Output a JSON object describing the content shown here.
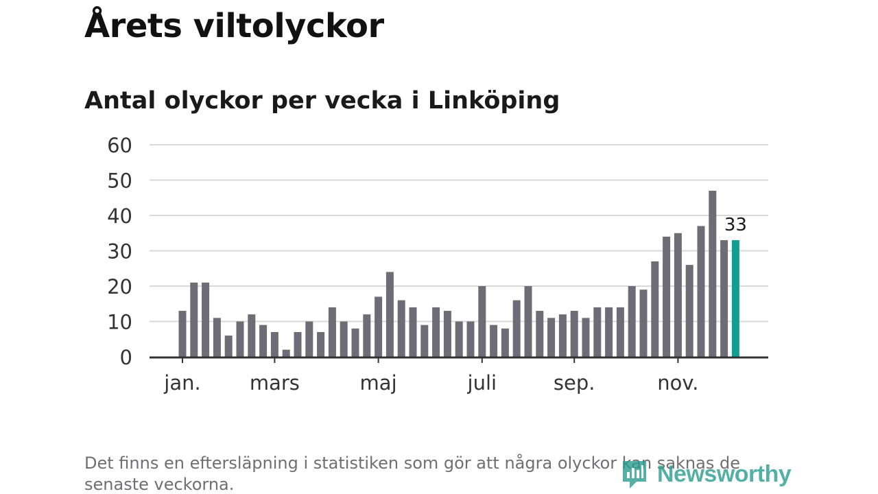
{
  "header": {
    "title": "Årets viltolyckor",
    "subtitle": "Antal olyckor per vecka i Linköping"
  },
  "footnote": "Det finns en eftersläpning i statistiken som gör att några olyckor kan saknas de senaste veckorna.",
  "logo": {
    "text": "Newsworthy",
    "icon": "newsworthy-chart-icon"
  },
  "colors": {
    "bar": "#6e6d75",
    "highlight": "#0fa08f",
    "grid": "#d9d9d9",
    "axis": "#333333",
    "logo": "#2a9d8f"
  },
  "chart_data": {
    "type": "bar",
    "title": "Antal olyckor per vecka i Linköping",
    "xlabel": "",
    "ylabel": "",
    "ylim": [
      0,
      60
    ],
    "yticks": [
      0,
      10,
      20,
      30,
      40,
      50,
      60
    ],
    "grid": true,
    "x_unit": "week",
    "weeks": [
      1,
      2,
      3,
      4,
      5,
      6,
      7,
      8,
      9,
      10,
      11,
      12,
      13,
      14,
      15,
      16,
      17,
      18,
      19,
      20,
      21,
      22,
      23,
      24,
      25,
      26,
      27,
      28,
      29,
      30,
      31,
      32,
      33,
      34,
      35,
      36,
      37,
      38,
      39,
      40,
      41,
      42,
      43,
      44,
      45,
      46,
      47,
      48,
      49
    ],
    "values": [
      13,
      21,
      21,
      11,
      6,
      10,
      12,
      9,
      7,
      2,
      7,
      10,
      7,
      14,
      10,
      8,
      12,
      17,
      24,
      16,
      14,
      9,
      14,
      13,
      10,
      10,
      20,
      9,
      8,
      16,
      20,
      13,
      11,
      12,
      13,
      11,
      14,
      14,
      14,
      20,
      19,
      27,
      34,
      35,
      26,
      37,
      47,
      33,
      33
    ],
    "month_ticks": [
      {
        "label": "jan.",
        "week": 1
      },
      {
        "label": "mars",
        "week": 9
      },
      {
        "label": "maj",
        "week": 18
      },
      {
        "label": "juli",
        "week": 27
      },
      {
        "label": "sep.",
        "week": 35
      },
      {
        "label": "nov.",
        "week": 44
      }
    ],
    "highlight_index": 48,
    "annotation": {
      "text": "33",
      "index": 48
    }
  }
}
